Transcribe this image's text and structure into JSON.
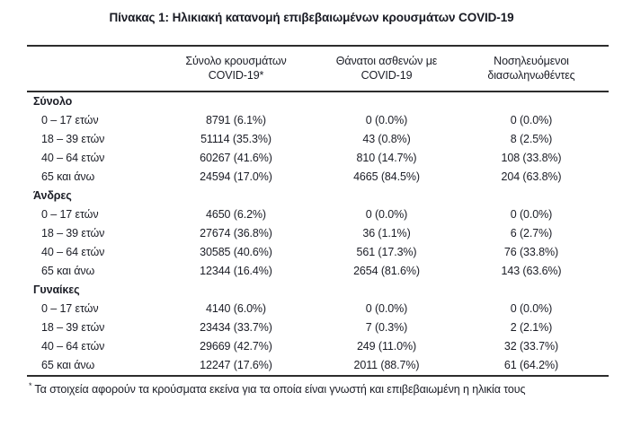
{
  "title": "Πίνακας 1: Ηλικιακή κατανομή επιβεβαιωμένων κρουσμάτων COVID-19",
  "table": {
    "columns": [
      "",
      "Σύνολο κρουσμάτων\nCOVID-19*",
      "Θάνατοι ασθενών με\nCOVID-19",
      "Νοσηλευόμενοι\nδιασωληνωθέντες"
    ],
    "sections": [
      {
        "label": "Σύνολο",
        "rows": [
          {
            "label": "0 – 17 ετών",
            "values": [
              "8791 (6.1%)",
              "0 (0.0%)",
              "0 (0.0%)"
            ]
          },
          {
            "label": "18 – 39 ετών",
            "values": [
              "51114 (35.3%)",
              "43 (0.8%)",
              "8 (2.5%)"
            ]
          },
          {
            "label": "40 – 64 ετών",
            "values": [
              "60267 (41.6%)",
              "810 (14.7%)",
              "108 (33.8%)"
            ]
          },
          {
            "label": "65 και άνω",
            "values": [
              "24594 (17.0%)",
              "4665 (84.5%)",
              "204 (63.8%)"
            ]
          }
        ]
      },
      {
        "label": "Άνδρες",
        "rows": [
          {
            "label": "0 – 17 ετών",
            "values": [
              "4650 (6.2%)",
              "0 (0.0%)",
              "0 (0.0%)"
            ]
          },
          {
            "label": "18 – 39 ετών",
            "values": [
              "27674 (36.8%)",
              "36 (1.1%)",
              "6 (2.7%)"
            ]
          },
          {
            "label": "40 – 64 ετών",
            "values": [
              "30585 (40.6%)",
              "561 (17.3%)",
              "76 (33.8%)"
            ]
          },
          {
            "label": "65 και άνω",
            "values": [
              "12344 (16.4%)",
              "2654 (81.6%)",
              "143 (63.6%)"
            ]
          }
        ]
      },
      {
        "label": "Γυναίκες",
        "rows": [
          {
            "label": "0 – 17 ετών",
            "values": [
              "4140 (6.0%)",
              "0 (0.0%)",
              "0 (0.0%)"
            ]
          },
          {
            "label": "18 – 39 ετών",
            "values": [
              "23434 (33.7%)",
              "7 (0.3%)",
              "2 (2.1%)"
            ]
          },
          {
            "label": "40 – 64 ετών",
            "values": [
              "29669 (42.7%)",
              "249 (11.0%)",
              "32 (33.7%)"
            ]
          },
          {
            "label": "65 και άνω",
            "values": [
              "12247 (17.6%)",
              "2011 (88.7%)",
              "61 (64.2%)"
            ]
          }
        ]
      }
    ]
  },
  "footnote": {
    "marker": "*",
    "text": "Τα στοιχεία αφορούν τα κρούσματα εκείνα για τα οποία είναι γνωστή και επιβεβαιωμένη η ηλικία τους"
  }
}
